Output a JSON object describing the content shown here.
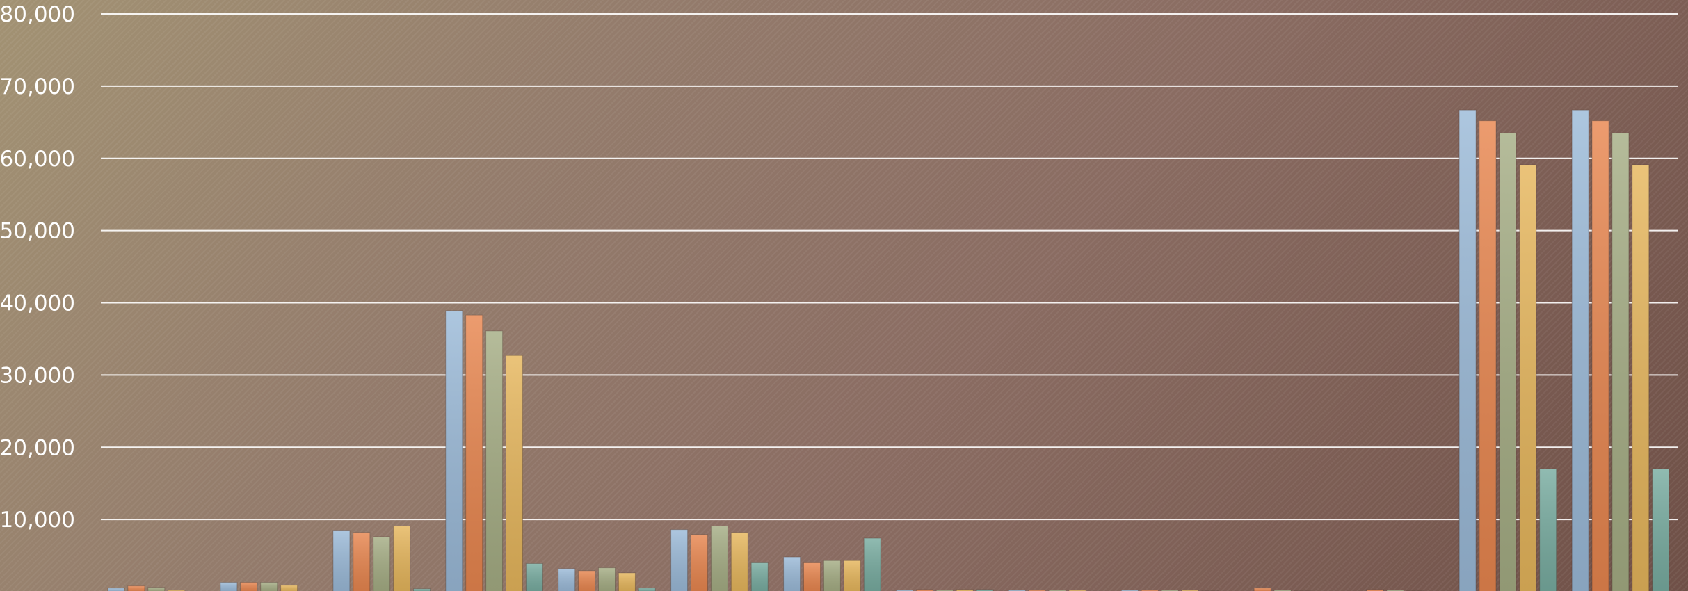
{
  "chart_data": {
    "type": "bar",
    "title": "",
    "xlabel": "",
    "ylabel": "",
    "ylim": [
      0,
      80000
    ],
    "yticks": [
      {
        "value": 10000,
        "label": "10,000"
      },
      {
        "value": 20000,
        "label": "20,000"
      },
      {
        "value": 30000,
        "label": "30,000"
      },
      {
        "value": 40000,
        "label": "40,000"
      },
      {
        "value": 50000,
        "label": "50,000"
      },
      {
        "value": 60000,
        "label": "60,000"
      },
      {
        "value": 70000,
        "label": "70,000"
      },
      {
        "value": 80000,
        "label": "80,000"
      }
    ],
    "grid": true,
    "legend": "none",
    "category_count": 14,
    "colors": [
      "#9bbad8",
      "#e8864f",
      "#a5ad84",
      "#e6b65c",
      "#78aca0"
    ],
    "series": [
      {
        "values": [
          500,
          1300,
          8500,
          38900,
          3200,
          8600,
          4800,
          200,
          200,
          200,
          0,
          0,
          66700,
          66700
        ]
      },
      {
        "values": [
          800,
          1300,
          8200,
          38300,
          2900,
          7900,
          4000,
          300,
          200,
          200,
          500,
          300,
          65200,
          65200
        ]
      },
      {
        "values": [
          600,
          1300,
          7600,
          36100,
          3300,
          9100,
          4300,
          200,
          200,
          200,
          200,
          200,
          63500,
          63500
        ]
      },
      {
        "values": [
          200,
          900,
          9100,
          32700,
          2600,
          8200,
          4300,
          300,
          200,
          200,
          100,
          100,
          59100,
          59100
        ]
      },
      {
        "values": [
          0,
          0,
          400,
          3900,
          500,
          4000,
          7400,
          300,
          0,
          100,
          0,
          0,
          17000,
          17000
        ]
      }
    ]
  }
}
